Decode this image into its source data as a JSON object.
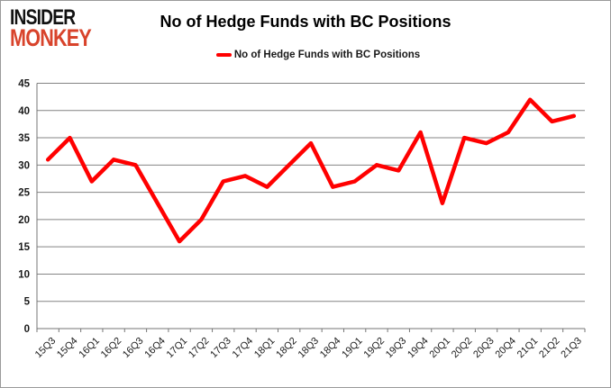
{
  "logo": {
    "line1": "INSIDER",
    "line2": "MONKEY"
  },
  "header": {
    "title": "No of Hedge Funds with BC Positions"
  },
  "legend": {
    "label": "No of Hedge Funds with BC Positions"
  },
  "colors": {
    "line": "#ff0000",
    "grid": "#848484",
    "axis": "#767676",
    "tick_text": "#1a1a1a",
    "logo_accent": "#d8432b",
    "frame_border": "#9a9a9a"
  },
  "chart_data": {
    "type": "line",
    "title": "No of Hedge Funds with BC Positions",
    "legend_entries": [
      "No of Hedge Funds with BC Positions"
    ],
    "legend_position": "top",
    "grid": "horizontal",
    "xlabel": "",
    "ylabel": "",
    "ylim": [
      0,
      45
    ],
    "ytick_step": 5,
    "yticks": [
      0,
      5,
      10,
      15,
      20,
      25,
      30,
      35,
      40,
      45
    ],
    "categories": [
      "15Q3",
      "15Q4",
      "16Q1",
      "16Q2",
      "16Q3",
      "16Q4",
      "17Q1",
      "17Q2",
      "17Q3",
      "17Q4",
      "18Q1",
      "18Q2",
      "18Q3",
      "18Q4",
      "19Q1",
      "19Q2",
      "19Q3",
      "19Q4",
      "20Q1",
      "20Q2",
      "20Q3",
      "20Q4",
      "21Q1",
      "21Q2",
      "21Q3"
    ],
    "series": [
      {
        "name": "No of Hedge Funds with BC Positions",
        "color": "#ff0000",
        "values": [
          31,
          35,
          27,
          31,
          30,
          23,
          16,
          20,
          27,
          28,
          26,
          30,
          34,
          26,
          27,
          30,
          29,
          36,
          23,
          35,
          34,
          36,
          42,
          38,
          39
        ]
      }
    ]
  }
}
